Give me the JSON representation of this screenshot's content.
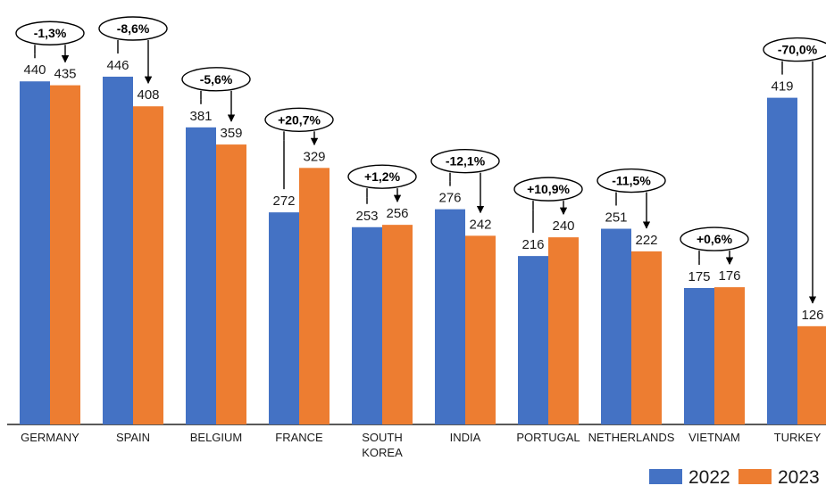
{
  "chart_data": {
    "type": "bar",
    "categories": [
      [
        "GERMANY"
      ],
      [
        "SPAIN"
      ],
      [
        "BELGIUM"
      ],
      [
        "FRANCE"
      ],
      [
        "SOUTH",
        "KOREA"
      ],
      [
        "INDIA"
      ],
      [
        "PORTUGAL"
      ],
      [
        "NETHERLANDS"
      ],
      [
        "VIETNAM"
      ],
      [
        "TURKEY"
      ]
    ],
    "series": [
      {
        "name": "2022",
        "color": "#4472C4",
        "values": [
          440,
          446,
          381,
          272,
          253,
          276,
          216,
          251,
          175,
          419
        ]
      },
      {
        "name": "2023",
        "color": "#ED7D31",
        "values": [
          435,
          408,
          359,
          329,
          256,
          242,
          240,
          222,
          176,
          126
        ]
      }
    ],
    "changes": [
      "-1,3%",
      "-8,6%",
      "-5,6%",
      "+20,7%",
      "+1,2%",
      "-12,1%",
      "+10,9%",
      "-11,5%",
      "+0,6%",
      "-70,0%"
    ],
    "ylim": [
      0,
      446
    ],
    "grid": false,
    "legend_position": "bottom-right",
    "title": "",
    "xlabel": "",
    "ylabel": ""
  }
}
